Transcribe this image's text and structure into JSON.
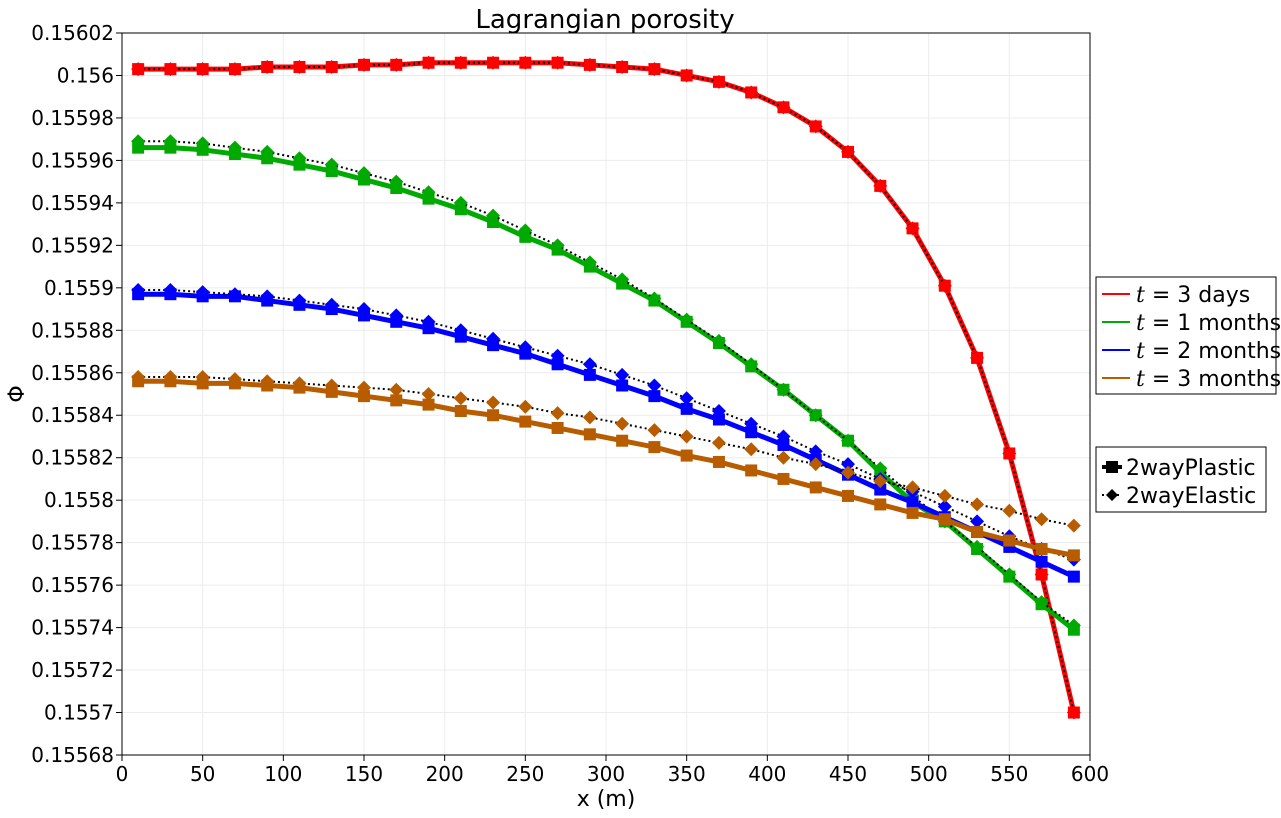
{
  "chart_data": {
    "type": "line",
    "title": "Lagrangian porosity",
    "xlabel": "x (m)",
    "ylabel": "Φ",
    "xlim": [
      0,
      600
    ],
    "ylim": [
      0.15568,
      0.15602
    ],
    "grid": true,
    "x_ticks": [
      "0",
      "50",
      "100",
      "150",
      "200",
      "250",
      "300",
      "350",
      "400",
      "450",
      "500",
      "550",
      "600"
    ],
    "y_ticks": [
      "0.15568",
      "0.1557",
      "0.15572",
      "0.15574",
      "0.15576",
      "0.15578",
      "0.1558",
      "0.15582",
      "0.15584",
      "0.15586",
      "0.15588",
      "0.1559",
      "0.15592",
      "0.15594",
      "0.15596",
      "0.15598",
      "0.156",
      "0.15602"
    ],
    "x": [
      10,
      30,
      50,
      70,
      90,
      110,
      130,
      150,
      170,
      190,
      210,
      230,
      250,
      270,
      290,
      310,
      330,
      350,
      370,
      390,
      410,
      430,
      450,
      470,
      490,
      510,
      530,
      550,
      570,
      590
    ],
    "legend_placement": "right",
    "time_legend": [
      {
        "math": "t",
        "eq": " = 3",
        "label": " days",
        "color": "#ff0000"
      },
      {
        "math": "t",
        "eq": " = 1",
        "label": " months",
        "color": "#00aa00"
      },
      {
        "math": "t",
        "eq": " = 2",
        "label": " months",
        "color": "#0000ff"
      },
      {
        "math": "t",
        "eq": " = 3",
        "label": " months",
        "color": "#b85c00"
      }
    ],
    "style_legend": [
      {
        "label": "2wayPlastic",
        "marker": "square",
        "line": "solid"
      },
      {
        "label": "2wayElastic",
        "marker": "diamond",
        "line": "dotted"
      }
    ],
    "series": [
      {
        "time": "t = 3 days",
        "model": "2wayPlastic",
        "color": "#ff0000",
        "values": [
          0.156003,
          0.156003,
          0.156003,
          0.156003,
          0.156004,
          0.156004,
          0.156004,
          0.156005,
          0.156005,
          0.156006,
          0.156006,
          0.156006,
          0.156006,
          0.156006,
          0.156005,
          0.156004,
          0.156003,
          0.156,
          0.155997,
          0.155992,
          0.155985,
          0.155976,
          0.155964,
          0.155948,
          0.155928,
          0.155901,
          0.155867,
          0.155822,
          0.155765,
          0.1557
        ]
      },
      {
        "time": "t = 3 days",
        "model": "2wayElastic",
        "color": "#ff0000",
        "values": [
          0.156003,
          0.156003,
          0.156003,
          0.156003,
          0.156004,
          0.156004,
          0.156004,
          0.156005,
          0.156005,
          0.156006,
          0.156006,
          0.156006,
          0.156006,
          0.156006,
          0.156005,
          0.156004,
          0.156003,
          0.156,
          0.155997,
          0.155992,
          0.155985,
          0.155976,
          0.155964,
          0.155948,
          0.155928,
          0.155901,
          0.155867,
          0.155822,
          0.155765,
          0.1557
        ]
      },
      {
        "time": "t = 1 months",
        "model": "2wayPlastic",
        "color": "#00aa00",
        "values": [
          0.155966,
          0.155966,
          0.155965,
          0.155963,
          0.155961,
          0.155958,
          0.155955,
          0.155951,
          0.155947,
          0.155942,
          0.155937,
          0.155931,
          0.155924,
          0.155918,
          0.15591,
          0.155902,
          0.155894,
          0.155884,
          0.155874,
          0.155863,
          0.155852,
          0.15584,
          0.155828,
          0.155813,
          0.155799,
          0.15579,
          0.155777,
          0.155764,
          0.155751,
          0.155739
        ]
      },
      {
        "time": "t = 1 months",
        "model": "2wayElastic",
        "color": "#00aa00",
        "values": [
          0.155969,
          0.155969,
          0.155968,
          0.155966,
          0.155964,
          0.155961,
          0.155958,
          0.155954,
          0.15595,
          0.155945,
          0.15594,
          0.155934,
          0.155927,
          0.15592,
          0.155912,
          0.155904,
          0.155895,
          0.155885,
          0.155875,
          0.155864,
          0.155852,
          0.15584,
          0.155828,
          0.155815,
          0.155802,
          0.15579,
          0.155778,
          0.155765,
          0.155752,
          0.155741
        ]
      },
      {
        "time": "t = 2 months",
        "model": "2wayPlastic",
        "color": "#0000ff",
        "values": [
          0.155897,
          0.155897,
          0.155896,
          0.155896,
          0.155894,
          0.155892,
          0.15589,
          0.155887,
          0.155884,
          0.155881,
          0.155877,
          0.155873,
          0.155869,
          0.155864,
          0.155859,
          0.155854,
          0.155849,
          0.155843,
          0.155838,
          0.155832,
          0.155826,
          0.155819,
          0.155812,
          0.155805,
          0.155799,
          0.155792,
          0.155785,
          0.155778,
          0.155771,
          0.155764
        ]
      },
      {
        "time": "t = 2 months",
        "model": "2wayElastic",
        "color": "#0000ff",
        "values": [
          0.155899,
          0.155899,
          0.155898,
          0.155897,
          0.155896,
          0.155894,
          0.155892,
          0.15589,
          0.155887,
          0.155884,
          0.15588,
          0.155876,
          0.155872,
          0.155868,
          0.155864,
          0.155859,
          0.155854,
          0.155848,
          0.155842,
          0.155836,
          0.15583,
          0.155823,
          0.155817,
          0.15581,
          0.155804,
          0.155797,
          0.15579,
          0.155783,
          0.155777,
          0.155772
        ]
      },
      {
        "time": "t = 3 months",
        "model": "2wayPlastic",
        "color": "#b85c00",
        "values": [
          0.155856,
          0.155856,
          0.155855,
          0.155855,
          0.155854,
          0.155853,
          0.155851,
          0.155849,
          0.155847,
          0.155845,
          0.155842,
          0.15584,
          0.155837,
          0.155834,
          0.155831,
          0.155828,
          0.155825,
          0.155821,
          0.155818,
          0.155814,
          0.15581,
          0.155806,
          0.155802,
          0.155798,
          0.155794,
          0.155791,
          0.155785,
          0.155781,
          0.155777,
          0.155774
        ]
      },
      {
        "time": "t = 3 months",
        "model": "2wayElastic",
        "color": "#b85c00",
        "values": [
          0.155858,
          0.155858,
          0.155858,
          0.155857,
          0.155856,
          0.155855,
          0.155854,
          0.155853,
          0.155852,
          0.15585,
          0.155848,
          0.155846,
          0.155844,
          0.155841,
          0.155839,
          0.155836,
          0.155833,
          0.15583,
          0.155827,
          0.155824,
          0.15582,
          0.155817,
          0.155813,
          0.155809,
          0.155806,
          0.155802,
          0.155798,
          0.155795,
          0.155791,
          0.155788
        ]
      }
    ]
  }
}
